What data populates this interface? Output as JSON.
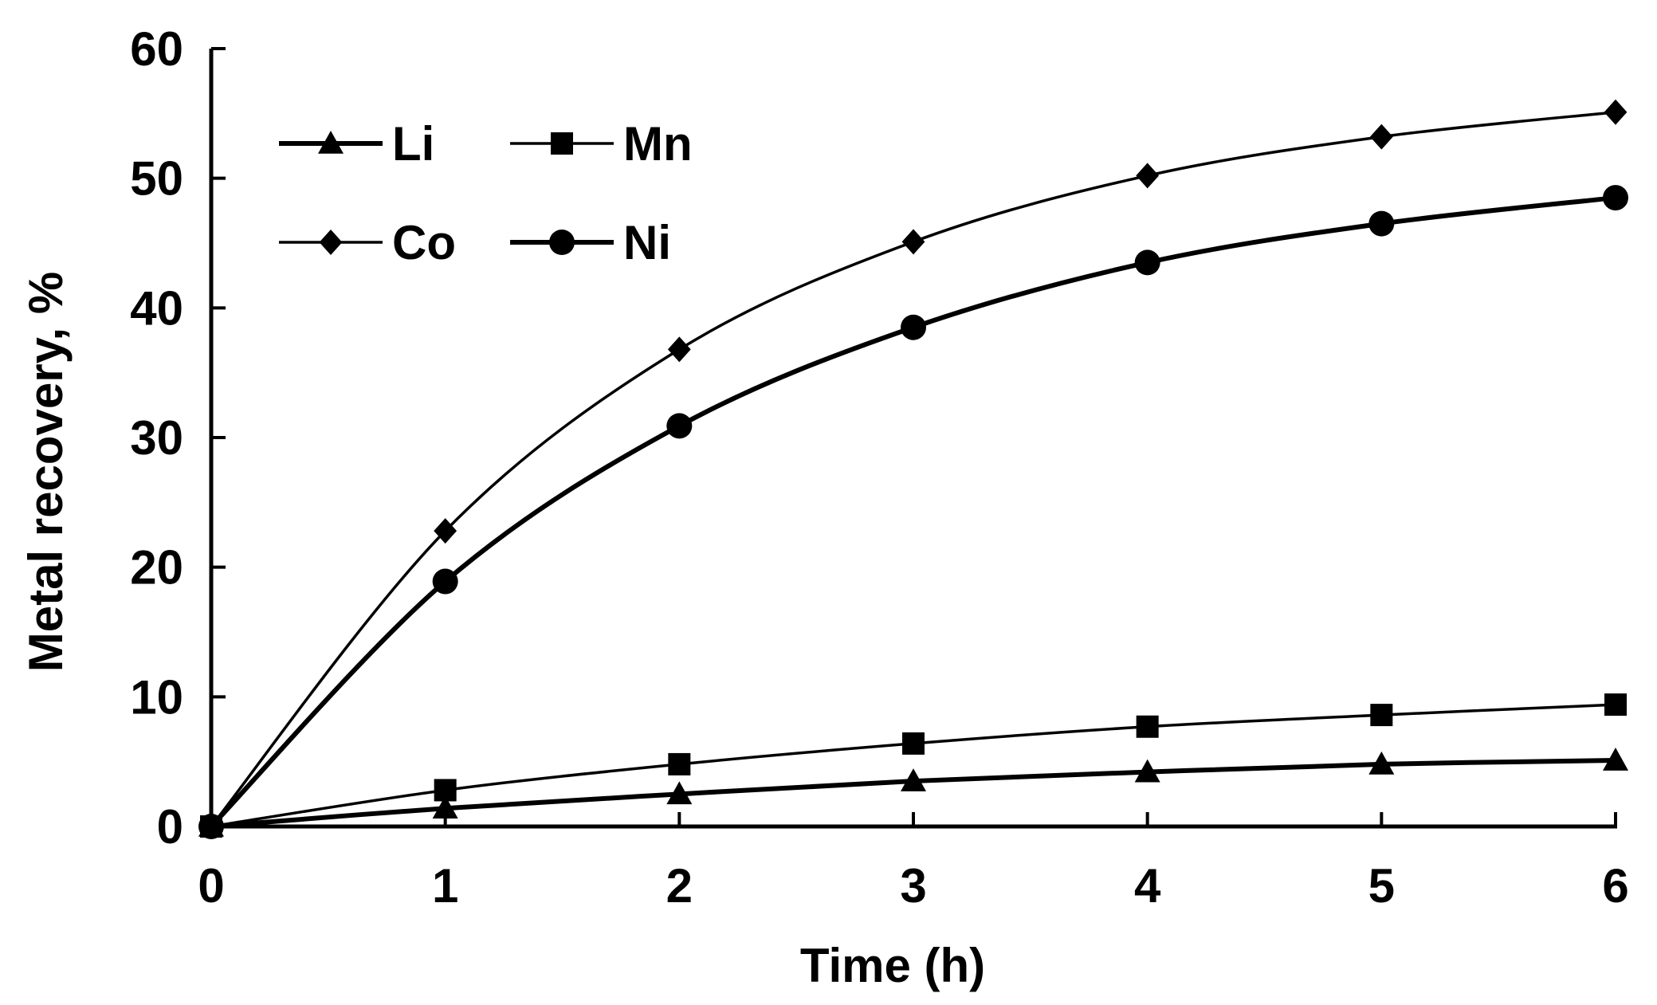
{
  "chart_data": {
    "type": "line",
    "title": "",
    "xlabel": "Time (h)",
    "ylabel": "Metal recovery, %",
    "x": [
      0,
      1,
      2,
      3,
      4,
      5,
      6
    ],
    "xlim": [
      0,
      6
    ],
    "ylim": [
      0,
      60
    ],
    "xticks": [
      "0",
      "1",
      "2",
      "3",
      "4",
      "5",
      "6"
    ],
    "yticks": [
      "0",
      "10",
      "20",
      "30",
      "40",
      "50",
      "60"
    ],
    "grid": false,
    "legend_position": "top-left",
    "series": [
      {
        "name": "Li",
        "marker": "triangle",
        "line": "thick",
        "values": [
          0,
          1.4,
          2.5,
          3.5,
          4.2,
          4.8,
          5.1
        ]
      },
      {
        "name": "Mn",
        "marker": "square",
        "line": "thin",
        "values": [
          0,
          2.8,
          4.8,
          6.4,
          7.7,
          8.6,
          9.4
        ]
      },
      {
        "name": "Co",
        "marker": "diamond",
        "line": "thin",
        "values": [
          0,
          22.8,
          36.8,
          45.1,
          50.2,
          53.2,
          55.1
        ]
      },
      {
        "name": "Ni",
        "marker": "circle",
        "line": "thick",
        "values": [
          0,
          18.9,
          30.9,
          38.5,
          43.5,
          46.5,
          48.5
        ]
      }
    ],
    "colors": {
      "line": "#000000",
      "background": "#ffffff"
    }
  }
}
